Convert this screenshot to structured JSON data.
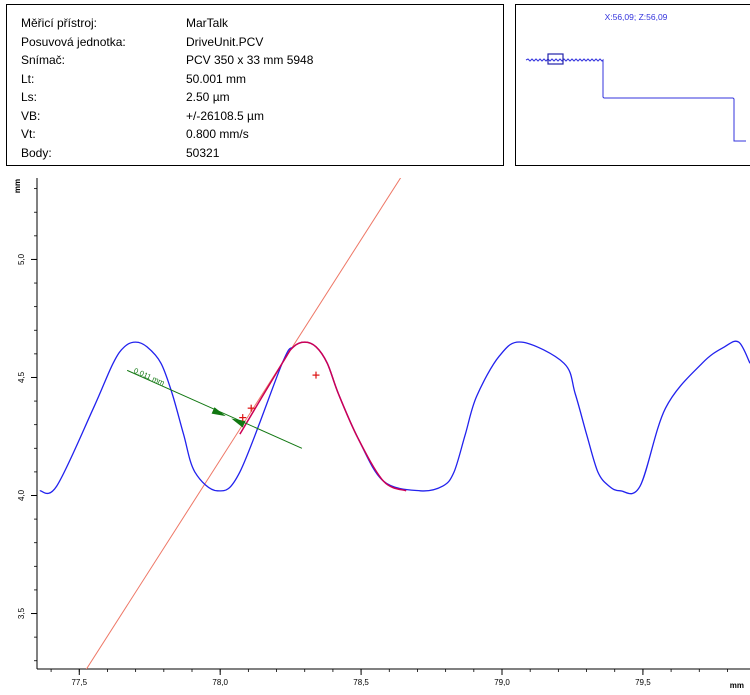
{
  "info": {
    "rows": [
      {
        "label": "Měřicí přístroj:",
        "value": "MarTalk"
      },
      {
        "label": "Posuvová jednotka:",
        "value": "DriveUnit.PCV"
      },
      {
        "label": "Snímač:",
        "value": "PCV 350 x 33 mm 5948"
      },
      {
        "label": "Lt:",
        "value": "50.001 mm"
      },
      {
        "label": "Ls:",
        "value": "2.50 µm"
      },
      {
        "label": "VB:",
        "value": "+/-26108.5 µm"
      },
      {
        "label": "Vt:",
        "value": "0.800 mm/s"
      },
      {
        "label": "Body:",
        "value": "50321"
      }
    ]
  },
  "overview": {
    "coord_readout": "X:56,09;  Z:56,09",
    "color": "#3333dd"
  },
  "chart_data": {
    "type": "line",
    "x_unit_label": "mm",
    "y_unit_label": "mm",
    "xlim": [
      77.35,
      79.88
    ],
    "ylim": [
      3.265,
      5.345
    ],
    "x_ticks": [
      77.5,
      78.0,
      78.5,
      79.0,
      79.5
    ],
    "x_tick_labels": [
      "77,5",
      "78,0",
      "78,5",
      "79,0",
      "79,5"
    ],
    "y_ticks": [
      3.5,
      4.0,
      4.5,
      5.0
    ],
    "y_tick_labels": [
      "3,5",
      "4,0",
      "4,5",
      "5,0"
    ],
    "profile_color": "#2222ee",
    "highlight_color": "#cc0055",
    "profile": {
      "x": [
        77.36,
        77.42,
        77.55,
        77.62,
        77.66,
        77.7,
        77.74,
        77.79,
        77.83,
        77.87,
        77.91,
        77.99,
        78.07,
        78.22,
        78.26,
        78.3,
        78.34,
        78.38,
        78.42,
        78.49,
        78.58,
        78.71,
        78.79,
        78.83,
        78.87,
        78.91,
        78.99,
        79.07,
        79.22,
        79.26,
        79.3,
        79.34,
        79.38,
        79.42,
        79.49,
        79.58,
        79.71,
        79.79,
        79.84,
        79.88
      ],
      "y": [
        4.02,
        4.04,
        4.37,
        4.56,
        4.63,
        4.65,
        4.63,
        4.56,
        4.43,
        4.26,
        4.1,
        4.02,
        4.1,
        4.56,
        4.63,
        4.65,
        4.63,
        4.56,
        4.43,
        4.24,
        4.06,
        4.02,
        4.04,
        4.1,
        4.26,
        4.42,
        4.59,
        4.65,
        4.56,
        4.43,
        4.26,
        4.1,
        4.04,
        4.02,
        4.04,
        4.37,
        4.56,
        4.63,
        4.65,
        4.56
      ]
    },
    "highlight": {
      "x": [
        78.07,
        78.22,
        78.26,
        78.3,
        78.34,
        78.38,
        78.42,
        78.49,
        78.58,
        78.66
      ],
      "y": [
        4.26,
        4.56,
        4.63,
        4.65,
        4.63,
        4.56,
        4.43,
        4.24,
        4.06,
        4.02
      ]
    },
    "fit_line": {
      "color": "#ee7766",
      "x1": 77.48,
      "y1": 3.18,
      "x2": 78.68,
      "y2": 5.42
    },
    "markers": [
      {
        "x": 78.08,
        "y": 4.33
      },
      {
        "x": 78.11,
        "y": 4.37
      },
      {
        "x": 78.34,
        "y": 4.51
      }
    ],
    "distance": {
      "label": "0.011 mm",
      "color": "#117711",
      "x1": 77.67,
      "y1": 4.53,
      "x2": 78.29,
      "y2": 4.2
    }
  }
}
